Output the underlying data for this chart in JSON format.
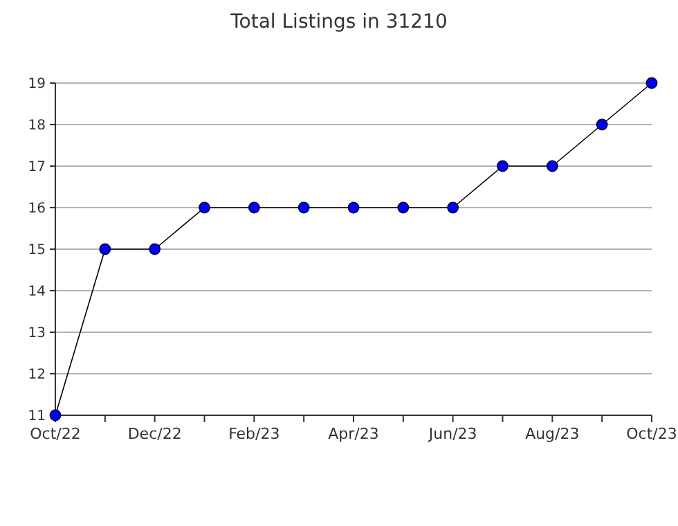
{
  "chart_data": {
    "type": "line",
    "title": "Total Listings in 31210",
    "categories": [
      "Oct/22",
      null,
      "Dec/22",
      null,
      "Feb/23",
      null,
      "Apr/23",
      null,
      "Jun/23",
      null,
      "Aug/23",
      null,
      "Oct/23"
    ],
    "series": [
      {
        "color": "#0000ff",
        "values": [
          11,
          15,
          15,
          16,
          16,
          16,
          16,
          16,
          16,
          17,
          17,
          18,
          19
        ]
      }
    ],
    "ylim": [
      11,
      19
    ],
    "yticks": [
      11,
      12,
      13,
      14,
      15,
      16,
      17,
      18,
      19
    ],
    "grid": "y",
    "marker": "circle",
    "line_style": "solid"
  }
}
